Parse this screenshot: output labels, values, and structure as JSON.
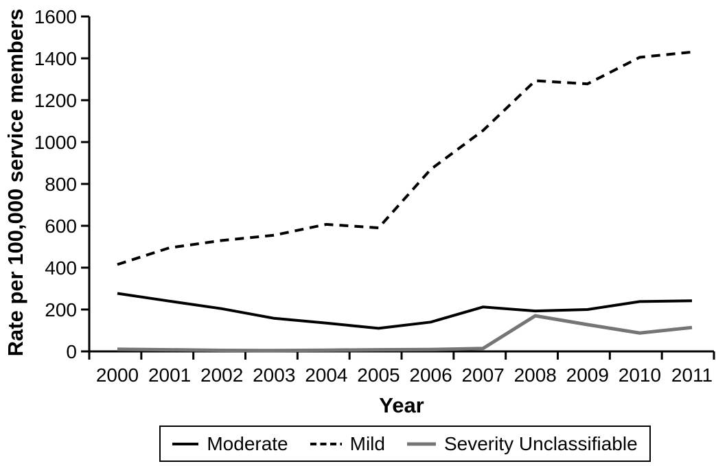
{
  "figure": {
    "background_color": "#ffffff",
    "text_color": "#000000"
  },
  "chart_data": {
    "type": "line",
    "title": "",
    "xlabel": "Year",
    "ylabel": "Rate per 100,000 service members",
    "x_categories": [
      "2000",
      "2001",
      "2002",
      "2003",
      "2004",
      "2005",
      "2006",
      "2007",
      "2008",
      "2009",
      "2010",
      "2011"
    ],
    "ylim": [
      0,
      1600
    ],
    "ytick_step": 200,
    "yticks": [
      0,
      200,
      400,
      600,
      800,
      1000,
      1200,
      1400,
      1600
    ],
    "grid": false,
    "legend_position": "bottom-center",
    "series": [
      {
        "name": "Moderate",
        "line_style": "solid",
        "color": "#000000",
        "values": [
          277,
          240,
          204,
          158,
          135,
          110,
          140,
          212,
          193,
          200,
          238,
          242
        ]
      },
      {
        "name": "Mild",
        "line_style": "dashed",
        "color": "#000000",
        "values": [
          415,
          495,
          530,
          555,
          607,
          590,
          870,
          1055,
          1293,
          1278,
          1405,
          1430
        ]
      },
      {
        "name": "Severity Unclassifiable",
        "line_style": "solid",
        "color": "#757575",
        "values": [
          10,
          8,
          5,
          4,
          6,
          8,
          9,
          14,
          170,
          128,
          88,
          114
        ]
      }
    ]
  }
}
